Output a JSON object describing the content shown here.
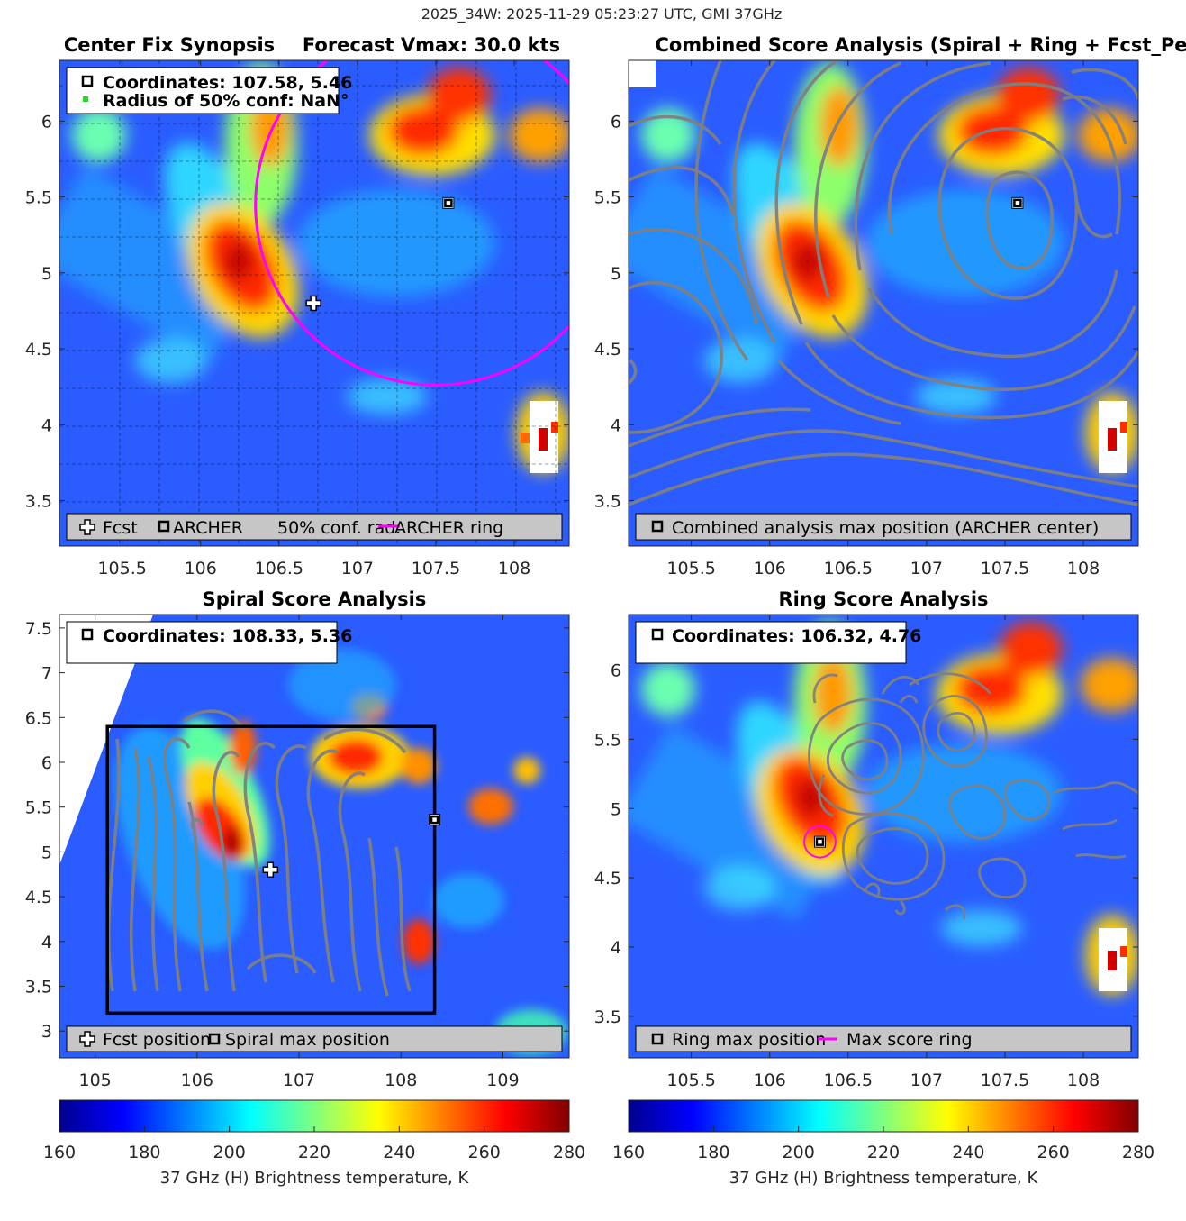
{
  "figure": {
    "suptitle": "2025_34W: 2025-11-29 05:23:27 UTC, GMI 37GHz"
  },
  "chart_data": [
    {
      "type": "heatmap",
      "panel": "top-left",
      "title_left": "Center Fix Synopsis",
      "title_right": "Forecast Vmax: 30.0 kts",
      "xlim": [
        105.1,
        108.35
      ],
      "ylim": [
        3.2,
        6.4
      ],
      "xticks": [
        105.5,
        106,
        106.5,
        107,
        107.5,
        108
      ],
      "yticks": [
        3.5,
        4,
        4.5,
        5,
        5.5,
        6
      ],
      "grid": true,
      "info_lines": [
        "Coordinates: 107.58, 5.46",
        "Radius of 50% conf: NaN°"
      ],
      "legend": [
        "Fcst",
        "ARCHER",
        "50% conf. rad.",
        "ARCHER ring"
      ],
      "points": [
        {
          "name": "ARCHER center",
          "x": 107.58,
          "y": 5.46
        },
        {
          "name": "Forecast",
          "x": 106.72,
          "y": 4.8
        }
      ],
      "ring": {
        "center_x": 107.5,
        "center_y": 5.45,
        "radius_deg": 1.15,
        "color": "#ff00ff"
      },
      "hotspots": [
        {
          "x": 106.3,
          "y": 5.05,
          "value": 268
        },
        {
          "x": 106.2,
          "y": 5.4,
          "value": 250
        },
        {
          "x": 106.45,
          "y": 5.95,
          "value": 252
        },
        {
          "x": 107.45,
          "y": 5.95,
          "value": 262
        },
        {
          "x": 107.75,
          "y": 6.15,
          "value": 258
        },
        {
          "x": 108.05,
          "y": 5.9,
          "value": 248
        },
        {
          "x": 108.2,
          "y": 3.95,
          "value": 280
        }
      ]
    },
    {
      "type": "heatmap",
      "panel": "top-right",
      "title": "Combined Score Analysis (Spiral + Ring + Fcst_Pe",
      "xlim": [
        105.1,
        108.35
      ],
      "ylim": [
        3.2,
        6.4
      ],
      "xticks": [
        105.5,
        106,
        106.5,
        107,
        107.5,
        108
      ],
      "yticks": [
        3.5,
        4,
        4.5,
        5,
        5.5,
        6
      ],
      "grid": false,
      "legend": [
        "Combined analysis max position (ARCHER center)"
      ],
      "points": [
        {
          "name": "Combined max",
          "x": 107.58,
          "y": 5.46
        }
      ],
      "contours": "combined score"
    },
    {
      "type": "heatmap",
      "panel": "bottom-left",
      "title": "Spiral Score Analysis",
      "xlim": [
        104.65,
        109.65
      ],
      "ylim": [
        2.7,
        7.65
      ],
      "xticks": [
        105,
        106,
        107,
        108,
        109
      ],
      "yticks": [
        3,
        3.5,
        4,
        4.5,
        5,
        5.5,
        6,
        6.5,
        7,
        7.5
      ],
      "info_lines": [
        "Coordinates: 108.33, 5.36"
      ],
      "legend": [
        "Fcst position",
        "Spiral max position"
      ],
      "points": [
        {
          "name": "Spiral max",
          "x": 108.33,
          "y": 5.36
        },
        {
          "name": "Forecast",
          "x": 106.72,
          "y": 4.8
        }
      ],
      "search_box": {
        "x0": 105.12,
        "x1": 108.33,
        "y0": 3.2,
        "y1": 6.4
      },
      "contours": "spiral score"
    },
    {
      "type": "heatmap",
      "panel": "bottom-right",
      "title": "Ring Score Analysis",
      "xlim": [
        105.1,
        108.35
      ],
      "ylim": [
        3.2,
        6.4
      ],
      "xticks": [
        105.5,
        106,
        106.5,
        107,
        107.5,
        108
      ],
      "yticks": [
        3.5,
        4,
        4.5,
        5,
        5.5,
        6
      ],
      "info_lines": [
        "Coordinates: 106.32, 4.76"
      ],
      "legend": [
        "Ring max position",
        "Max score ring"
      ],
      "points": [
        {
          "name": "Ring max",
          "x": 106.32,
          "y": 4.76
        }
      ],
      "ring": {
        "center_x": 106.32,
        "center_y": 4.76,
        "radius_deg": 0.1,
        "color": "#ff00ff"
      },
      "contours": "ring score"
    }
  ],
  "colorbar": {
    "label": "37 GHz (H) Brightness temperature, K",
    "min": 160,
    "max": 280,
    "ticks": [
      160,
      180,
      200,
      220,
      240,
      260,
      280
    ],
    "colormap": "jet"
  }
}
